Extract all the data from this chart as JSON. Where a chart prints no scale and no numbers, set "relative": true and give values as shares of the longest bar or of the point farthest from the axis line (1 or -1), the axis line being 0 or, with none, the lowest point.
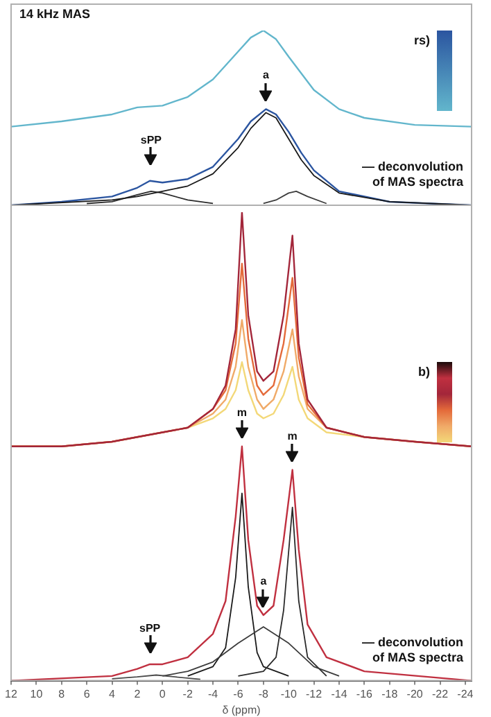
{
  "chart_data": [
    {
      "type": "line",
      "relative": true,
      "xlim": [
        12,
        -24.5
      ],
      "tick_labels": false,
      "grid": false,
      "legend": false,
      "marker": "none",
      "annotations": [
        "14 kHz MAS",
        "rs)",
        "— deconvolution of MAS spectra",
        {
          "text": "a",
          "x": -8.2,
          "y": 0.55
        },
        {
          "text": "sPP",
          "x": 0.9,
          "y": 0.18
        }
      ],
      "series": [
        {
          "color": "#62b6cc",
          "x": [
            12,
            8,
            4,
            2,
            0,
            -2,
            -4,
            -6,
            -7,
            -8,
            -9,
            -10,
            -12,
            -14,
            -16,
            -20,
            -24.5
          ],
          "values": [
            0.45,
            0.48,
            0.52,
            0.56,
            0.57,
            0.62,
            0.72,
            0.88,
            0.96,
            1,
            0.95,
            0.85,
            0.66,
            0.55,
            0.5,
            0.46,
            0.45
          ]
        },
        {
          "color": "#2b55a0",
          "x": [
            12,
            8,
            4,
            2,
            1,
            0,
            -2,
            -4,
            -6,
            -7,
            -8.2,
            -9,
            -10,
            -11,
            -12,
            -14,
            -18,
            -24.5
          ],
          "values": [
            0,
            0.02,
            0.05,
            0.1,
            0.14,
            0.13,
            0.15,
            0.22,
            0.38,
            0.48,
            0.55,
            0.52,
            0.42,
            0.3,
            0.2,
            0.08,
            0.02,
            0
          ]
        },
        {
          "color": "#2a2a2a",
          "x": [
            6,
            4,
            2,
            0.9,
            0,
            -2,
            -4
          ],
          "values": [
            0.01,
            0.02,
            0.06,
            0.08,
            0.07,
            0.03,
            0.01
          ]
        },
        {
          "color": "#1a1a1a",
          "x": [
            12,
            4,
            2,
            0,
            -2,
            -4,
            -6,
            -7,
            -8.2,
            -9,
            -10,
            -11,
            -12,
            -14,
            -18,
            -24.5
          ],
          "values": [
            0,
            0.03,
            0.05,
            0.08,
            0.11,
            0.18,
            0.33,
            0.44,
            0.53,
            0.5,
            0.38,
            0.26,
            0.17,
            0.07,
            0.02,
            0
          ]
        },
        {
          "color": "#3c3c3c",
          "x": [
            -8,
            -9,
            -10,
            -10.6,
            -11.5,
            -13
          ],
          "values": [
            0.01,
            0.03,
            0.07,
            0.08,
            0.05,
            0.01
          ]
        }
      ]
    },
    {
      "type": "line",
      "relative": true,
      "xlim": [
        12,
        -24.5
      ],
      "xticks": [
        12,
        10,
        8,
        6,
        4,
        2,
        0,
        -2,
        -4,
        -6,
        -8,
        -10,
        -12,
        -14,
        -16,
        -18,
        -20,
        -22,
        -24
      ],
      "xlabel": "δ (ppm)",
      "tick_labels": "x",
      "grid": false,
      "legend": false,
      "marker": "none",
      "annotations": [
        "b)",
        "— deconvolution of MAS spectra",
        {
          "text": "m",
          "x": -6.3,
          "y": 0.5
        },
        {
          "text": "m",
          "x": -10.3,
          "y": 0.45
        },
        {
          "text": "a",
          "x": -8,
          "y": 0.14
        },
        {
          "text": "sPP",
          "x": 1,
          "y": 0.04
        }
      ],
      "series": [
        {
          "color": "#f3d878",
          "x": [
            12,
            8,
            4,
            2,
            0,
            -2,
            -4,
            -5,
            -5.8,
            -6.3,
            -6.8,
            -7.5,
            -8,
            -8.8,
            -9.6,
            -10.3,
            -10.8,
            -11.5,
            -13,
            -16,
            -20,
            -24.5
          ],
          "values": [
            0.5,
            0.5,
            0.51,
            0.52,
            0.53,
            0.54,
            0.56,
            0.58,
            0.62,
            0.68,
            0.62,
            0.57,
            0.56,
            0.57,
            0.61,
            0.67,
            0.6,
            0.56,
            0.53,
            0.52,
            0.51,
            0.5
          ]
        },
        {
          "color": "#f0aa68",
          "x": [
            12,
            8,
            4,
            2,
            0,
            -2,
            -4,
            -5,
            -5.8,
            -6.3,
            -6.8,
            -7.5,
            -8,
            -8.8,
            -9.6,
            -10.3,
            -10.8,
            -11.5,
            -13,
            -16,
            -20,
            -24.5
          ],
          "values": [
            0.5,
            0.5,
            0.51,
            0.52,
            0.53,
            0.54,
            0.57,
            0.6,
            0.67,
            0.77,
            0.67,
            0.6,
            0.58,
            0.6,
            0.66,
            0.75,
            0.65,
            0.58,
            0.54,
            0.52,
            0.51,
            0.5
          ]
        },
        {
          "color": "#e46a3a",
          "x": [
            12,
            8,
            4,
            2,
            0,
            -2,
            -4,
            -5,
            -5.8,
            -6.3,
            -6.8,
            -7.5,
            -8,
            -8.8,
            -9.6,
            -10.3,
            -10.8,
            -11.5,
            -13,
            -16,
            -20,
            -24.5
          ],
          "values": [
            0.5,
            0.5,
            0.51,
            0.52,
            0.53,
            0.54,
            0.58,
            0.62,
            0.72,
            0.89,
            0.73,
            0.63,
            0.61,
            0.63,
            0.72,
            0.86,
            0.69,
            0.59,
            0.54,
            0.52,
            0.51,
            0.5
          ]
        },
        {
          "color": "#a3263a",
          "x": [
            12,
            8,
            4,
            2,
            0,
            -2,
            -4,
            -5,
            -5.8,
            -6.3,
            -6.8,
            -7.5,
            -8,
            -8.8,
            -9.6,
            -10.3,
            -10.8,
            -11.5,
            -13,
            -16,
            -20,
            -24.5
          ],
          "values": [
            0.5,
            0.5,
            0.51,
            0.52,
            0.53,
            0.54,
            0.58,
            0.63,
            0.75,
            1,
            0.78,
            0.66,
            0.64,
            0.66,
            0.78,
            0.95,
            0.72,
            0.6,
            0.54,
            0.52,
            0.51,
            0.5
          ]
        },
        {
          "color": "#c03040",
          "x": [
            12,
            4,
            2,
            1,
            0,
            -2,
            -4,
            -5,
            -5.8,
            -6.3,
            -6.8,
            -7.5,
            -8,
            -8.8,
            -9.6,
            -10.3,
            -10.8,
            -11.5,
            -13,
            -16,
            -24.5
          ],
          "values": [
            0,
            0.01,
            0.025,
            0.035,
            0.035,
            0.05,
            0.1,
            0.17,
            0.35,
            0.5,
            0.3,
            0.16,
            0.14,
            0.16,
            0.3,
            0.45,
            0.28,
            0.12,
            0.05,
            0.02,
            0
          ]
        },
        {
          "color": "#1a1a1a",
          "x": [
            -2,
            -4,
            -5,
            -5.8,
            -6.3,
            -6.8,
            -7.5,
            -8,
            -10
          ],
          "values": [
            0.01,
            0.03,
            0.07,
            0.22,
            0.4,
            0.2,
            0.06,
            0.03,
            0.01
          ]
        },
        {
          "color": "#2a2a2a",
          "x": [
            -6,
            -8,
            -9,
            -9.6,
            -10.3,
            -10.8,
            -11.5,
            -13
          ],
          "values": [
            0.01,
            0.02,
            0.05,
            0.15,
            0.37,
            0.17,
            0.05,
            0.01
          ]
        },
        {
          "color": "#3c3c3c",
          "x": [
            0,
            -2,
            -4,
            -6,
            -8,
            -10,
            -12,
            -14
          ],
          "values": [
            0.01,
            0.02,
            0.04,
            0.08,
            0.115,
            0.08,
            0.03,
            0.01
          ]
        },
        {
          "color": "#4a4a4a",
          "x": [
            4,
            2,
            0.5,
            -1,
            -3
          ],
          "values": [
            0.004,
            0.008,
            0.012,
            0.008,
            0.003
          ]
        }
      ]
    }
  ]
}
